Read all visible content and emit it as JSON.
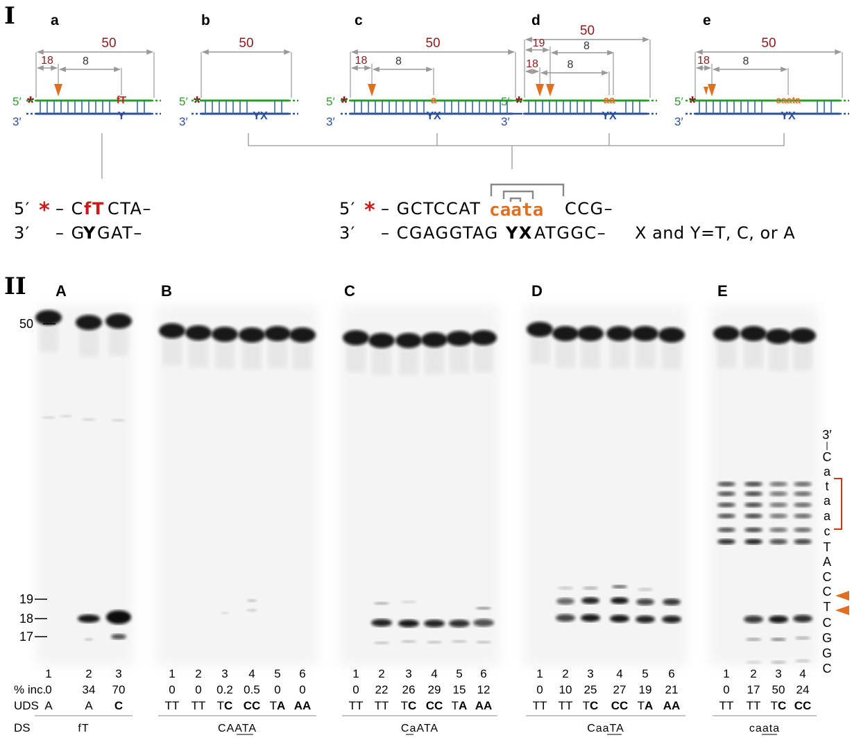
{
  "part_labels": {
    "part1": "I",
    "part2": "II"
  },
  "schematics": [
    {
      "id": "a",
      "letter": "a",
      "len": "50",
      "pos": "18",
      "gap": "8",
      "top_mod": "fT",
      "bottom_mod": "Y"
    },
    {
      "id": "b",
      "letter": "b",
      "len": "50",
      "bottom_mod": "YX"
    },
    {
      "id": "c",
      "letter": "c",
      "len": "50",
      "pos": "18",
      "gap": "8",
      "top_mod": "a",
      "bottom_mod": "YX"
    },
    {
      "id": "d",
      "letter": "d",
      "len": "50",
      "pos": "18",
      "pos2": "19",
      "gap": "8",
      "gap2": "8",
      "top_mod": "aa",
      "bottom_mod": "YX"
    },
    {
      "id": "e",
      "letter": "e",
      "len": "50",
      "pos": "18",
      "gap": "8",
      "top_mod": "caata",
      "bottom_mod": "YX"
    }
  ],
  "strand_labels": {
    "five": "5′",
    "three": "3′",
    "star": "*"
  },
  "sequences": {
    "left_top_prefix": "5′",
    "left_top_star": "*",
    "left_top_a": "– C",
    "left_top_mod": "fT",
    "left_top_b": "CTA–",
    "left_bottom_prefix": "3′",
    "left_bottom_a": "– G",
    "left_bottom_mod": "Y",
    "left_bottom_b": "GAT–",
    "right_top_prefix": "5′",
    "right_top_star": "*",
    "right_top_a": "– GCTCCAT",
    "right_top_mod": "caata",
    "right_top_b": "CCG–",
    "right_bottom_prefix": "3′",
    "right_bottom_a": "– CGAGGTAG",
    "right_bottom_mod": "YX",
    "right_bottom_b": "ATGGC–",
    "legend": "X and Y=T, C, or A"
  },
  "markers": {
    "m50": "50",
    "m19": "19",
    "m18": "18",
    "m17": "17"
  },
  "row_labels": {
    "lane": "",
    "inc": "% inc.",
    "uds": "UDS",
    "ds": "DS"
  },
  "panels": [
    {
      "label": "A",
      "ds": "fT",
      "lanes": [
        {
          "n": "1",
          "inc": "0",
          "uds_a": "",
          "uds_b": "A"
        },
        {
          "n": "2",
          "inc": "34",
          "uds_a": "",
          "uds_b": "A"
        },
        {
          "n": "3",
          "inc": "70",
          "uds_a": "",
          "uds_b": "C",
          "bold": true
        }
      ]
    },
    {
      "label": "B",
      "ds": "CAATA",
      "lanes": [
        {
          "n": "1",
          "inc": "0",
          "uds_a": "T",
          "uds_b": "T"
        },
        {
          "n": "2",
          "inc": "0",
          "uds_a": "T",
          "uds_b": "T"
        },
        {
          "n": "3",
          "inc": "0.2",
          "uds_a": "T",
          "uds_b": "C",
          "bold": true
        },
        {
          "n": "4",
          "inc": "0.5",
          "uds_a": "CC",
          "uds_b": "",
          "bold_all": true
        },
        {
          "n": "5",
          "inc": "0",
          "uds_a": "T",
          "uds_b": "A",
          "bold": true
        },
        {
          "n": "6",
          "inc": "0",
          "uds_a": "AA",
          "uds_b": "",
          "bold_all": true
        }
      ]
    },
    {
      "label": "C",
      "ds": "CaATA",
      "lanes": [
        {
          "n": "1",
          "inc": "0",
          "uds_a": "T",
          "uds_b": "T"
        },
        {
          "n": "2",
          "inc": "22",
          "uds_a": "T",
          "uds_b": "T"
        },
        {
          "n": "3",
          "inc": "26",
          "uds_a": "T",
          "uds_b": "C",
          "bold": true
        },
        {
          "n": "4",
          "inc": "29",
          "uds_a": "CC",
          "uds_b": "",
          "bold_all": true
        },
        {
          "n": "5",
          "inc": "15",
          "uds_a": "T",
          "uds_b": "A",
          "bold": true
        },
        {
          "n": "6",
          "inc": "12",
          "uds_a": "AA",
          "uds_b": "",
          "bold_all": true
        }
      ]
    },
    {
      "label": "D",
      "ds": "CaaTA",
      "lanes": [
        {
          "n": "1",
          "inc": "0",
          "uds_a": "T",
          "uds_b": "T"
        },
        {
          "n": "2",
          "inc": "10",
          "uds_a": "T",
          "uds_b": "T"
        },
        {
          "n": "3",
          "inc": "25",
          "uds_a": "T",
          "uds_b": "C",
          "bold": true
        },
        {
          "n": "4",
          "inc": "27",
          "uds_a": "CC",
          "uds_b": "",
          "bold_all": true
        },
        {
          "n": "5",
          "inc": "19",
          "uds_a": "T",
          "uds_b": "A",
          "bold": true
        },
        {
          "n": "6",
          "inc": "21",
          "uds_a": "AA",
          "uds_b": "",
          "bold_all": true
        }
      ]
    },
    {
      "label": "E",
      "ds": "caata",
      "lanes": [
        {
          "n": "1",
          "inc": "0",
          "uds_a": "T",
          "uds_b": "T"
        },
        {
          "n": "2",
          "inc": "17",
          "uds_a": "T",
          "uds_b": "T"
        },
        {
          "n": "3",
          "inc": "50",
          "uds_a": "T",
          "uds_b": "C",
          "bold": true
        },
        {
          "n": "4",
          "inc": "24",
          "uds_a": "CC",
          "uds_b": "",
          "bold_all": true
        }
      ]
    }
  ],
  "ladder": [
    "3′",
    "C",
    "a",
    "t",
    "a",
    "a",
    "c",
    "T",
    "A",
    "C",
    "C",
    "T",
    "C",
    "G",
    "G",
    "C"
  ],
  "colors": {
    "top_strand": "#2e9a2e",
    "bottom_strand": "#2b4f9c",
    "accent": "#e07020",
    "dark_red": "#8b1a1a",
    "red": "#d01818",
    "gray": "#999999",
    "band": "#0a0a0a"
  }
}
